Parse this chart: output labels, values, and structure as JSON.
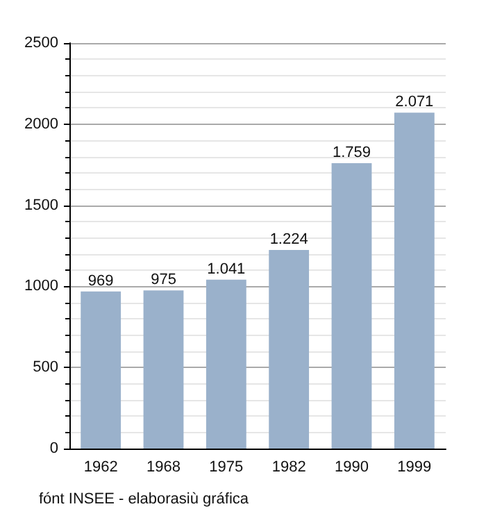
{
  "chart_data": {
    "type": "bar",
    "categories": [
      "1962",
      "1968",
      "1975",
      "1982",
      "1990",
      "1999"
    ],
    "values": [
      969,
      975,
      1041,
      1224,
      1759,
      2071
    ],
    "value_labels": [
      "969",
      "975",
      "1.041",
      "1.224",
      "1.759",
      "2.071"
    ],
    "color": "#9ab1cb",
    "ylim": [
      0,
      2500
    ],
    "yticks": [
      0,
      500,
      1000,
      1500,
      2000,
      2500
    ],
    "grid": "y",
    "annotations": [
      "fónt INSEE - elaborasiù gráfica"
    ]
  }
}
